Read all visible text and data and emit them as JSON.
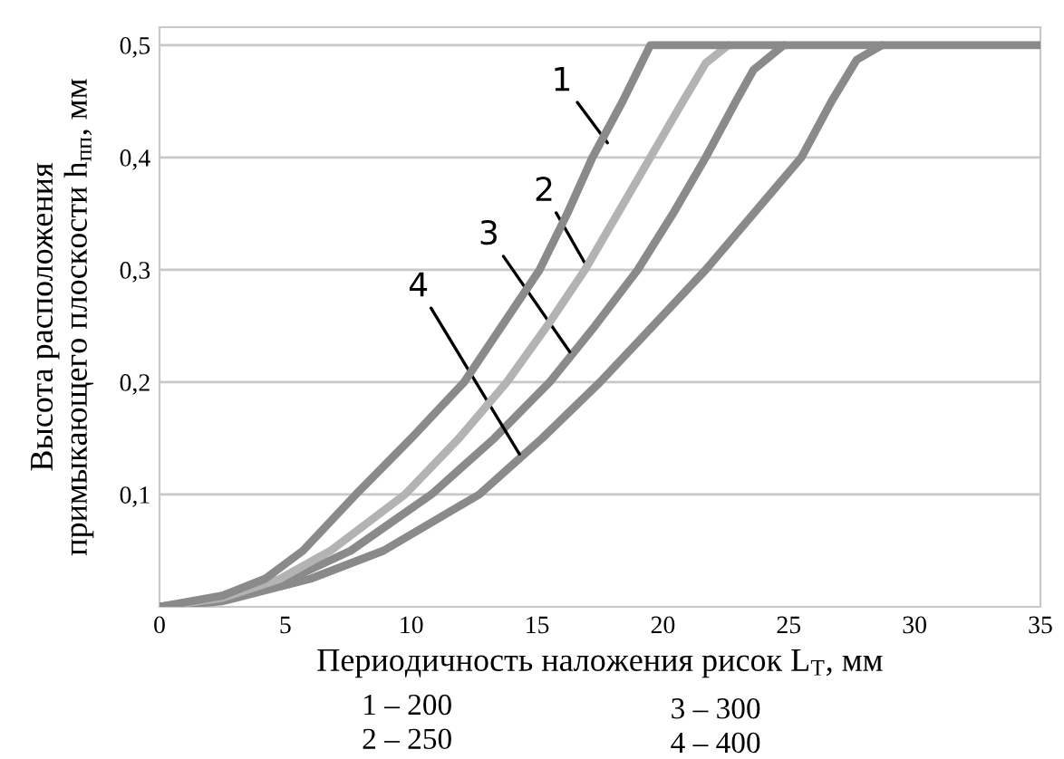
{
  "chart_data": {
    "type": "line",
    "xlabel": "Периодичность наложения рисок L$_{Т}$, мм",
    "ylabel": "Высота расположения\nпримыкающего плоскости h$_{пп}$, мм",
    "xlim": [
      0,
      35
    ],
    "xticks": [
      0,
      5,
      10,
      15,
      20,
      25,
      30,
      35
    ],
    "ylim": [
      0,
      0.516
    ],
    "yticks": [
      {
        "value": 0.1,
        "label": "0,1"
      },
      {
        "value": 0.2,
        "label": "0,2"
      },
      {
        "value": 0.3,
        "label": "0,3"
      },
      {
        "value": 0.4,
        "label": "0,4"
      },
      {
        "value": 0.5,
        "label": "0,5"
      }
    ],
    "grid": "y",
    "marker": "none",
    "line_style": "solid",
    "series": [
      {
        "color": "#8a8a8a",
        "x": [
          0,
          2.5,
          4.2,
          5.7,
          7.8,
          10.0,
          12.1,
          13.6,
          15.1,
          16.2,
          17.2,
          18.4,
          19.5,
          35
        ],
        "values": [
          0,
          0.01,
          0.025,
          0.05,
          0.1,
          0.15,
          0.2,
          0.25,
          0.3,
          0.35,
          0.4,
          0.45,
          0.5,
          0.5
        ]
      },
      {
        "color": "#b3b3b3",
        "x": [
          0,
          2.5,
          4.8,
          6.8,
          9.75,
          11.9,
          13.8,
          15.4,
          16.9,
          18.2,
          19.5,
          20.8,
          21.7,
          22.6
        ],
        "values": [
          0,
          0.008,
          0.025,
          0.05,
          0.1,
          0.15,
          0.2,
          0.25,
          0.3,
          0.35,
          0.4,
          0.45,
          0.484,
          0.5
        ]
      },
      {
        "color": "#8a8a8a",
        "x": [
          0,
          2.5,
          5.2,
          7.6,
          10.8,
          13.3,
          15.5,
          17.3,
          19.0,
          20.4,
          21.7,
          22.9,
          23.6,
          24.8
        ],
        "values": [
          0,
          0.007,
          0.025,
          0.05,
          0.1,
          0.15,
          0.2,
          0.25,
          0.3,
          0.35,
          0.4,
          0.45,
          0.478,
          0.5
        ]
      },
      {
        "color": "#8a8a8a",
        "x": [
          0,
          2.5,
          6.0,
          8.9,
          12.7,
          15.2,
          17.5,
          19.6,
          21.7,
          23.6,
          25.5,
          26.7,
          27.7,
          28.7
        ],
        "values": [
          0,
          0.005,
          0.025,
          0.05,
          0.1,
          0.15,
          0.2,
          0.25,
          0.3,
          0.35,
          0.4,
          0.45,
          0.487,
          0.5
        ]
      }
    ],
    "annotations": [
      {
        "text": "1",
        "x": 17.8,
        "y": 0.413
      },
      {
        "text": "2",
        "x": 16.9,
        "y": 0.306
      },
      {
        "text": "3",
        "x": 16.3,
        "y": 0.227
      },
      {
        "text": "4",
        "x": 14.3,
        "y": 0.136
      },
      "1 – 200",
      "2 – 250",
      "3 – 300",
      "4 – 400"
    ]
  }
}
